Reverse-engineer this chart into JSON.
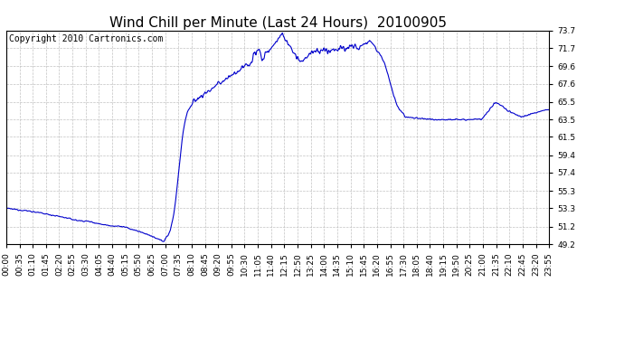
{
  "title": "Wind Chill per Minute (Last 24 Hours)  20100905",
  "copyright": "Copyright 2010 Cartronics.com",
  "line_color": "#0000cc",
  "background_color": "#ffffff",
  "grid_color": "#bbbbbb",
  "ylim": [
    49.2,
    73.7
  ],
  "yticks": [
    49.2,
    51.2,
    53.3,
    55.3,
    57.4,
    59.4,
    61.5,
    63.5,
    65.5,
    67.6,
    69.6,
    71.7,
    73.7
  ],
  "xtick_labels": [
    "00:00",
    "00:35",
    "01:10",
    "01:45",
    "02:20",
    "02:55",
    "03:30",
    "04:05",
    "04:40",
    "05:15",
    "05:50",
    "06:25",
    "07:00",
    "07:35",
    "08:10",
    "08:45",
    "09:20",
    "09:55",
    "10:30",
    "11:05",
    "11:40",
    "12:15",
    "12:50",
    "13:25",
    "14:00",
    "14:35",
    "15:10",
    "15:45",
    "16:20",
    "16:55",
    "17:30",
    "18:05",
    "18:40",
    "19:15",
    "19:50",
    "20:25",
    "21:00",
    "21:35",
    "22:10",
    "22:45",
    "23:20",
    "23:55"
  ],
  "title_fontsize": 11,
  "tick_fontsize": 6.5,
  "copyright_fontsize": 7,
  "linewidth": 0.8
}
